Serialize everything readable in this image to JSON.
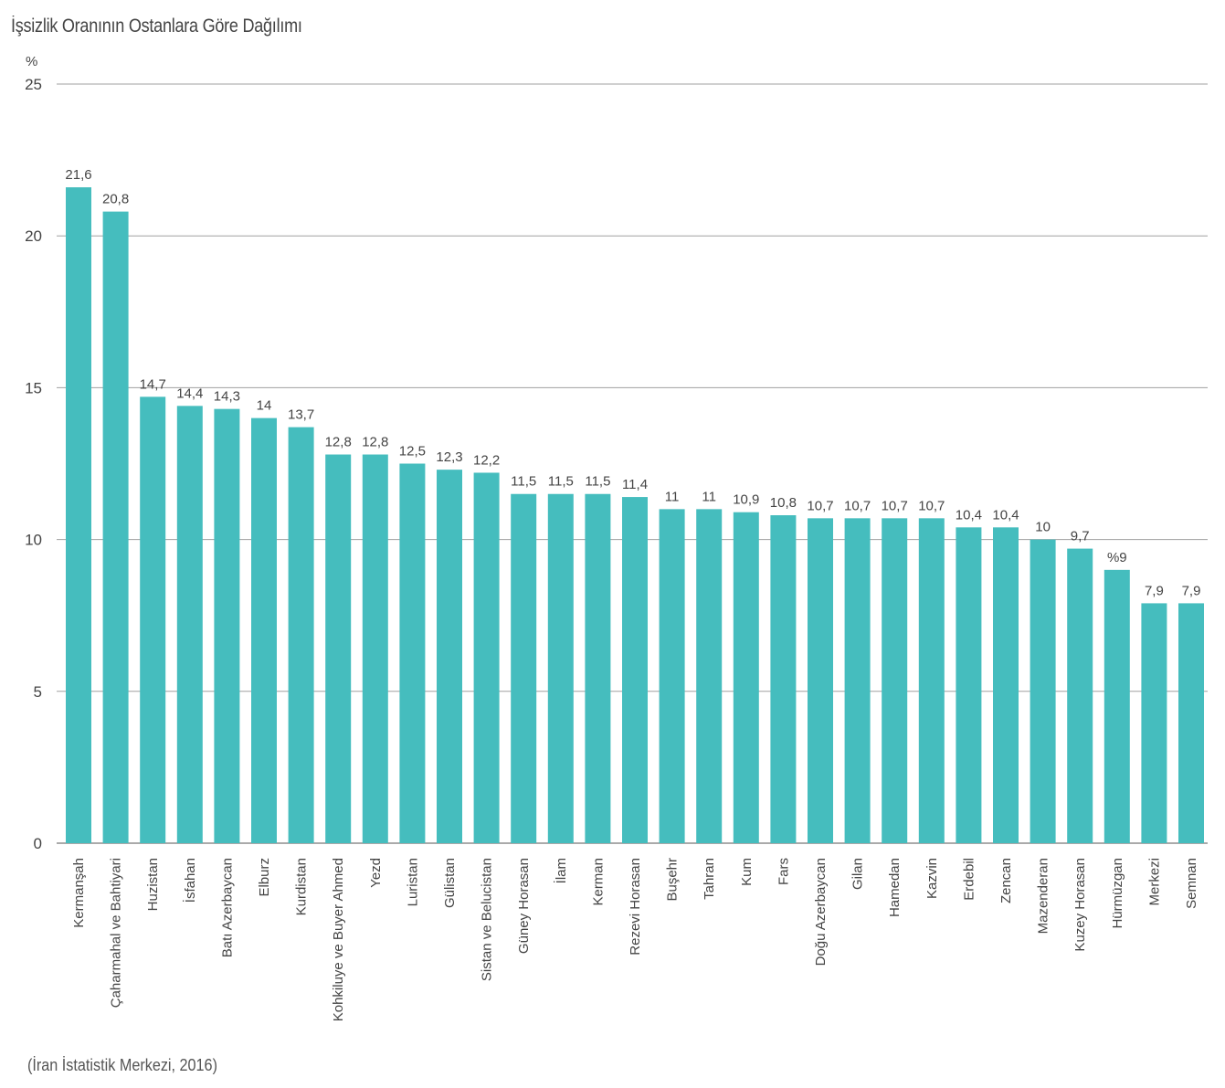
{
  "title": "İşsizlik Oranının Ostanlara Göre Dağılımı",
  "source": "(İran İstatistik Merkezi, 2016)",
  "colors": {
    "bar": "#45BDBE",
    "grid": "#A0A0A0",
    "baseline": "#555555"
  },
  "chart_data": {
    "type": "bar",
    "title": "İşsizlik Oranının Ostanlara Göre Dağılımı",
    "ylabel": "%",
    "xlabel": "",
    "ylim": [
      0,
      25
    ],
    "yticks": [
      0,
      5,
      10,
      15,
      20,
      25
    ],
    "grid": true,
    "categories": [
      "Kermanşah",
      "Çaharmahal ve Bahtiyari",
      "Huzistan",
      "İsfahan",
      "Batı Azerbaycan",
      "Elburz",
      "Kurdistan",
      "Kohkiluye ve Buyer Ahmed",
      "Yezd",
      "Luristan",
      "Gülistan",
      "Sistan ve Belucistan",
      "Güney Horasan",
      "İlam",
      "Kerman",
      "Rezevi Horasan",
      "Buşehr",
      "Tahran",
      "Kum",
      "Fars",
      "Doğu Azerbaycan",
      "Gilan",
      "Hamedan",
      "Kazvin",
      "Erdebil",
      "Zencan",
      "Mazenderan",
      "Kuzey Horasan",
      "Hürmüzgan",
      "Merkezi",
      "Semnan"
    ],
    "values": [
      21.6,
      20.8,
      14.7,
      14.4,
      14.3,
      14,
      13.7,
      12.8,
      12.8,
      12.5,
      12.3,
      12.2,
      11.5,
      11.5,
      11.5,
      11.4,
      11,
      11,
      10.9,
      10.8,
      10.7,
      10.7,
      10.7,
      10.7,
      10.4,
      10.4,
      10,
      9.7,
      9,
      7.9,
      7.9
    ],
    "value_labels": [
      "21,6",
      "20,8",
      "14,7",
      "14,4",
      "14,3",
      "14",
      "13,7",
      "12,8",
      "12,8",
      "12,5",
      "12,3",
      "12,2",
      "11,5",
      "11,5",
      "11,5",
      "11,4",
      "11",
      "11",
      "10,9",
      "10,8",
      "10,7",
      "10,7",
      "10,7",
      "10,7",
      "10,4",
      "10,4",
      "10",
      "9,7",
      "%9",
      "7,9",
      "7,9"
    ]
  }
}
